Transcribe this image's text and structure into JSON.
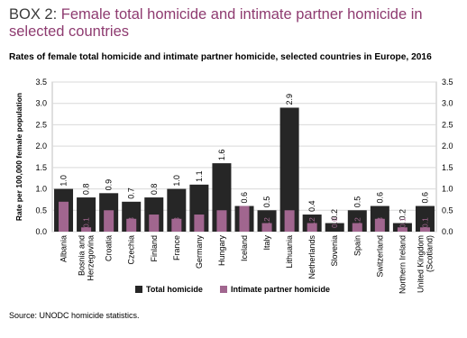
{
  "header": {
    "box_label": "BOX 2: ",
    "title": "Female total homicide and intimate partner homicide in selected countries"
  },
  "source": "Source: UNODC homicide statistics.",
  "colors": {
    "total": "#262626",
    "ipv": "#a1668f",
    "title": "#8e3b70"
  },
  "chart_data": {
    "type": "bar",
    "title": "Rates of female total homicide and intimate partner homicide, selected countries in Europe, 2016",
    "ylabel": "Rate per 100,000 female population",
    "xlabel": "",
    "ylim": [
      0,
      3.5
    ],
    "yticks": [
      "0.0",
      "0.5",
      "1.0",
      "1.5",
      "2.0",
      "2.5",
      "3.0",
      "3.5"
    ],
    "grid": true,
    "legend": "bottom",
    "categories": [
      "Albania",
      "Bosnia and Herzegovina",
      "Croatia",
      "Czechia",
      "Finland",
      "France",
      "Germany",
      "Hungary",
      "Iceland",
      "Italy",
      "Lithuania",
      "Netherlands",
      "Slovenia",
      "Spain",
      "Switzerland",
      "Northern Ireland",
      "United Kingdom (Scotland)"
    ],
    "category_lines": [
      [
        "Albania"
      ],
      [
        "Bosnia and",
        "Herzegovina"
      ],
      [
        "Croatia"
      ],
      [
        "Czechia"
      ],
      [
        "Finland"
      ],
      [
        "France"
      ],
      [
        "Germany"
      ],
      [
        "Hungary"
      ],
      [
        "Iceland"
      ],
      [
        "Italy"
      ],
      [
        "Lithuania"
      ],
      [
        "Netherlands"
      ],
      [
        "Slovenia"
      ],
      [
        "Spain"
      ],
      [
        "Switzerland"
      ],
      [
        "Northern Ireland"
      ],
      [
        "United Kingdom",
        "(Scotland)"
      ]
    ],
    "series": [
      {
        "name": "Total homicide",
        "values": [
          1.0,
          0.8,
          0.9,
          0.7,
          0.8,
          1.0,
          1.1,
          1.6,
          0.6,
          0.5,
          2.9,
          0.4,
          0.2,
          0.5,
          0.6,
          0.2,
          0.6
        ],
        "labels": [
          "1.0",
          "0.8",
          "0.9",
          "0.7",
          "0.8",
          "1.0",
          "1.1",
          "1.6",
          "0.6",
          "0.5",
          "2.9",
          "0.4",
          "0.2",
          "0.5",
          "0.6",
          "0.2",
          "0.6"
        ]
      },
      {
        "name": "Intimate partner homicide",
        "values": [
          0.7,
          0.1,
          0.5,
          0.3,
          0.4,
          0.3,
          0.4,
          0.5,
          0.6,
          0.2,
          0.5,
          0.2,
          0.0,
          0.2,
          0.3,
          0.1,
          0.1
        ],
        "labels": [
          "0.7",
          "0.1",
          "0.5",
          "0.3",
          "0.4",
          "0.3",
          "0.4",
          "0.5",
          "0.6",
          "0.2",
          "0.5",
          "0.2",
          "0.0",
          "0.2",
          "0.3",
          "0.1",
          "0.1"
        ]
      }
    ]
  }
}
